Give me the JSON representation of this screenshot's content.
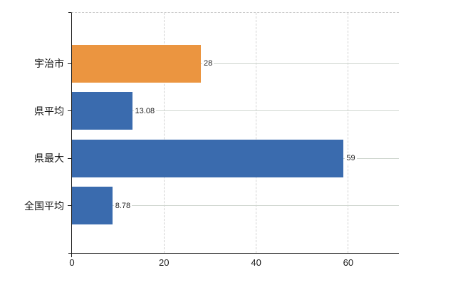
{
  "chart_data": {
    "type": "bar",
    "orientation": "horizontal",
    "title": "",
    "xlabel": "",
    "ylabel": "",
    "categories": [
      "宇治市",
      "県平均",
      "県最大",
      "全国平均"
    ],
    "values": [
      28,
      13.08,
      59,
      8.78
    ],
    "value_labels": [
      "28",
      "13.08",
      "59",
      "8.78"
    ],
    "highlight_category": "宇治市",
    "xlim": [
      0,
      71
    ],
    "x_ticks": [
      0,
      20,
      40,
      60
    ],
    "x_tick_labels": [
      "0",
      "20",
      "40",
      "60"
    ],
    "grid": true,
    "legend": "none",
    "bar_colors": [
      "#EB9540",
      "#3A6BAE",
      "#3A6BAE",
      "#3A6BAE"
    ]
  },
  "colors": {
    "highlight_bar": "#EB9540",
    "default_bar": "#3A6BAE",
    "grid_horizontal": "#cfd6cf",
    "grid_vertical": "#d2d2d2",
    "axis": "#1f1f1f",
    "plot_top_border_dashed": "#c9c9c9",
    "label_text": "#1a1a1a",
    "value_text": "#222222",
    "background": "#ffffff"
  }
}
